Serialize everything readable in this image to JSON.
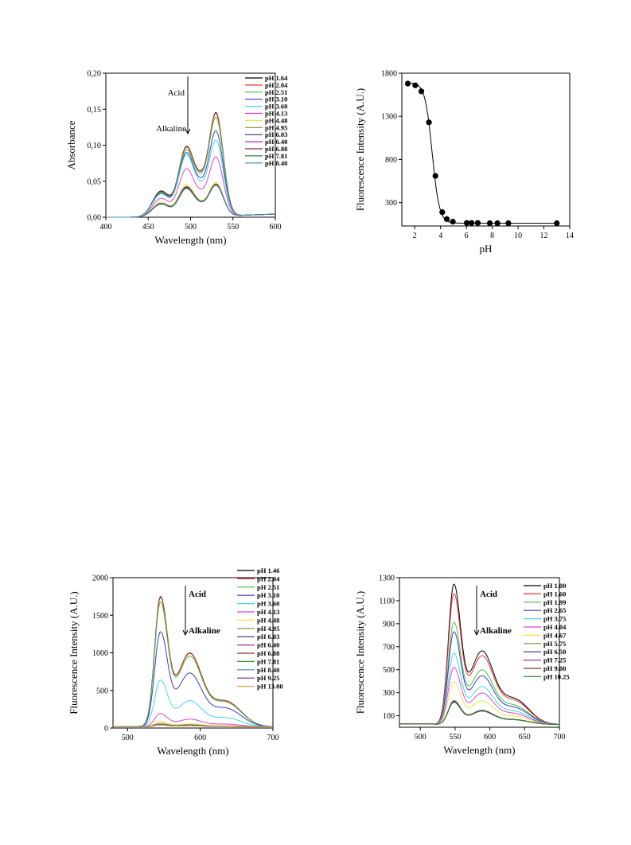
{
  "chart_data": [
    {
      "id": "abs",
      "type": "line",
      "xlabel": "Wavelength (nm)",
      "ylabel": "Absorbance",
      "xlim": [
        400,
        600
      ],
      "ylim": [
        0,
        0.2
      ],
      "xticks": [
        400,
        450,
        500,
        550,
        600
      ],
      "yticks": [
        0,
        0.05,
        0.1,
        0.15,
        0.2
      ],
      "ytick_labels": [
        "0,00",
        "0,05",
        "0,10",
        "0,15",
        "0,20"
      ],
      "annotations": {
        "top": "Acid",
        "bottom": "Alkaline"
      },
      "peaks": [
        465,
        495,
        530
      ],
      "series": [
        {
          "name": "pH 1.64",
          "color": "#000000",
          "peak_values": [
            0.036,
            0.096,
            0.143
          ]
        },
        {
          "name": "pH 2.04",
          "color": "#e5322f",
          "peak_values": [
            0.035,
            0.095,
            0.142
          ]
        },
        {
          "name": "pH 2.51",
          "color": "#3fc23f",
          "peak_values": [
            0.034,
            0.092,
            0.137
          ]
        },
        {
          "name": "pH 3.10",
          "color": "#3a3ad1",
          "peak_values": [
            0.033,
            0.088,
            0.118
          ]
        },
        {
          "name": "pH 3.60",
          "color": "#3fd9e8",
          "peak_values": [
            0.032,
            0.085,
            0.105
          ]
        },
        {
          "name": "pH 4.13",
          "color": "#e83fd0",
          "peak_values": [
            0.026,
            0.066,
            0.082
          ]
        },
        {
          "name": "pH 4.48",
          "color": "#e8e83f",
          "peak_values": [
            0.021,
            0.045,
            0.047
          ]
        },
        {
          "name": "pH 4.95",
          "color": "#8a8a3a",
          "peak_values": [
            0.019,
            0.042,
            0.045
          ]
        },
        {
          "name": "pH 6.03",
          "color": "#2f2f8a",
          "peak_values": [
            0.019,
            0.041,
            0.044
          ]
        },
        {
          "name": "pH 6.40",
          "color": "#a22fa2",
          "peak_values": [
            0.019,
            0.04,
            0.044
          ]
        },
        {
          "name": "pH 6.88",
          "color": "#8a2f2f",
          "peak_values": [
            0.019,
            0.04,
            0.044
          ]
        },
        {
          "name": "pH 7.81",
          "color": "#2f8a2f",
          "peak_values": [
            0.018,
            0.039,
            0.043
          ]
        },
        {
          "name": "pH 8.40",
          "color": "#3a8ab0",
          "peak_values": [
            0.018,
            0.039,
            0.043
          ]
        }
      ]
    },
    {
      "id": "ph",
      "type": "scatter",
      "xlabel": "pH",
      "ylabel": "Fluorescence Intensity (A.U.)",
      "xlim": [
        1,
        14
      ],
      "ylim": [
        30,
        1800
      ],
      "xticks": [
        2,
        4,
        6,
        8,
        10,
        12,
        14
      ],
      "yticks": [
        300,
        800,
        1300,
        1800
      ],
      "x": [
        1.46,
        2.04,
        2.51,
        3.1,
        3.6,
        4.13,
        4.48,
        4.95,
        6.03,
        6.4,
        6.88,
        7.81,
        8.4,
        9.25,
        13.0
      ],
      "y": [
        1680,
        1660,
        1590,
        1230,
        610,
        190,
        110,
        80,
        65,
        65,
        65,
        62,
        62,
        62,
        62
      ]
    },
    {
      "id": "fl1",
      "type": "line",
      "xlabel": "Wavelength (nm)",
      "ylabel": "Fluorescence Intensity (A.U.)",
      "xlim": [
        480,
        700
      ],
      "ylim": [
        0,
        2000
      ],
      "xticks": [
        500,
        600,
        700
      ],
      "yticks": [
        0,
        500,
        1000,
        1500,
        2000
      ],
      "ytick_labels": [
        "0",
        "500",
        "1000",
        "1500",
        "2000"
      ],
      "annotations": {
        "top": "Acid",
        "bottom": "Alkaline"
      },
      "peaks": [
        545,
        585
      ],
      "series": [
        {
          "name": "pH 1.46",
          "color": "#000000",
          "peak_values": [
            1670,
            960
          ]
        },
        {
          "name": "pH 2.04",
          "color": "#e5322f",
          "peak_values": [
            1660,
            955
          ]
        },
        {
          "name": "pH 2.51",
          "color": "#3fc23f",
          "peak_values": [
            1600,
            920
          ]
        },
        {
          "name": "pH 3.10",
          "color": "#3a3ad1",
          "peak_values": [
            1220,
            700
          ]
        },
        {
          "name": "pH 3.60",
          "color": "#3fd9e8",
          "peak_values": [
            600,
            340
          ]
        },
        {
          "name": "pH 4.13",
          "color": "#e83fd0",
          "peak_values": [
            170,
            100
          ]
        },
        {
          "name": "pH 4.48",
          "color": "#e8e83f",
          "peak_values": [
            70,
            40
          ]
        },
        {
          "name": "pH 4.95",
          "color": "#8a8a3a",
          "peak_values": [
            45,
            28
          ]
        },
        {
          "name": "pH 6.03",
          "color": "#2f2f8a",
          "peak_values": [
            30,
            20
          ]
        },
        {
          "name": "pH 6.40",
          "color": "#a22fa2",
          "peak_values": [
            28,
            18
          ]
        },
        {
          "name": "pH 6.88",
          "color": "#8a2f2f",
          "peak_values": [
            26,
            17
          ]
        },
        {
          "name": "pH 7.81",
          "color": "#2f8a2f",
          "peak_values": [
            25,
            16
          ]
        },
        {
          "name": "pH 8.40",
          "color": "#3a8ab0",
          "peak_values": [
            24,
            15
          ]
        },
        {
          "name": "pH 9.25",
          "color": "#5a3a9a",
          "peak_values": [
            24,
            15
          ]
        },
        {
          "name": "pH 13.00",
          "color": "#d9a23a",
          "peak_values": [
            23,
            14
          ]
        }
      ]
    },
    {
      "id": "fl2",
      "type": "line",
      "xlabel": "Wavelength (nm)",
      "ylabel": "Fluorescence Intensity (A.U.)",
      "xlim": [
        470,
        700
      ],
      "ylim": [
        0,
        1300
      ],
      "xticks": [
        500,
        550,
        600,
        650,
        700
      ],
      "yticks": [
        100,
        300,
        500,
        700,
        900,
        1100,
        1300
      ],
      "ytick_labels": [
        "100",
        "300",
        "500",
        "700",
        "900",
        "1100",
        "1300"
      ],
      "annotations": {
        "top": "Acid",
        "bottom": "Alkaline"
      },
      "peaks": [
        548,
        588
      ],
      "series": [
        {
          "name": "pH 1.00",
          "color": "#000000",
          "peak_values": [
            1180,
            620
          ]
        },
        {
          "name": "pH 1.60",
          "color": "#e5322f",
          "peak_values": [
            1100,
            580
          ]
        },
        {
          "name": "pH 1.99",
          "color": "#3fc23f",
          "peak_values": [
            860,
            460
          ]
        },
        {
          "name": "pH 2.65",
          "color": "#3a3ad1",
          "peak_values": [
            780,
            410
          ]
        },
        {
          "name": "pH 3.75",
          "color": "#3fd9e8",
          "peak_values": [
            600,
            320
          ]
        },
        {
          "name": "pH 4.04",
          "color": "#e83fd0",
          "peak_values": [
            480,
            265
          ]
        },
        {
          "name": "pH 4.67",
          "color": "#e8e83f",
          "peak_values": [
            360,
            200
          ]
        },
        {
          "name": "pH 5.75",
          "color": "#8a8a3a",
          "peak_values": [
            200,
            120
          ]
        },
        {
          "name": "pH 6.50",
          "color": "#2f2f8a",
          "peak_values": [
            195,
            118
          ]
        },
        {
          "name": "pH 7.25",
          "color": "#a22fa2",
          "peak_values": [
            190,
            115
          ]
        },
        {
          "name": "pH 9.00",
          "color": "#8a2f2f",
          "peak_values": [
            188,
            113
          ]
        },
        {
          "name": "pH 10.25",
          "color": "#2f8a2f",
          "peak_values": [
            185,
            112
          ]
        }
      ]
    }
  ]
}
